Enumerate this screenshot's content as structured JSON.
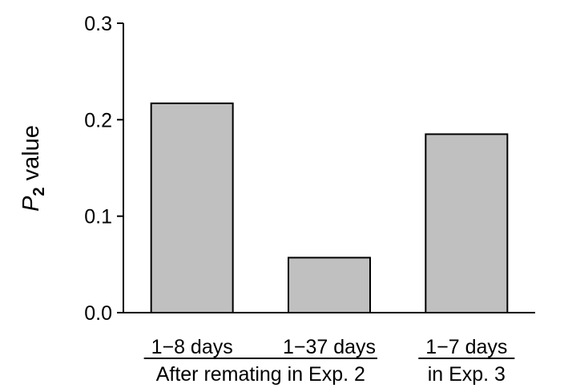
{
  "chart_data": {
    "type": "bar",
    "categories": [
      "1−8 days",
      "1−37 days",
      "1−7 days"
    ],
    "values": [
      0.217,
      0.057,
      0.185
    ],
    "groups": [
      {
        "label": "After remating in Exp. 2",
        "categories": [
          0,
          1
        ]
      },
      {
        "label": "in Exp. 3",
        "categories": [
          2
        ]
      }
    ],
    "title": "",
    "ylabel": {
      "main": "P",
      "subscript": "2",
      "suffix": " value"
    },
    "xlabel": "",
    "ylim": [
      0,
      0.3
    ],
    "yticks": [
      "0.0",
      "0.1",
      "0.2",
      "0.3"
    ],
    "bar_color": "#c0c0c0",
    "bar_edge_color": "#000000",
    "grid": false,
    "legend": "none"
  }
}
